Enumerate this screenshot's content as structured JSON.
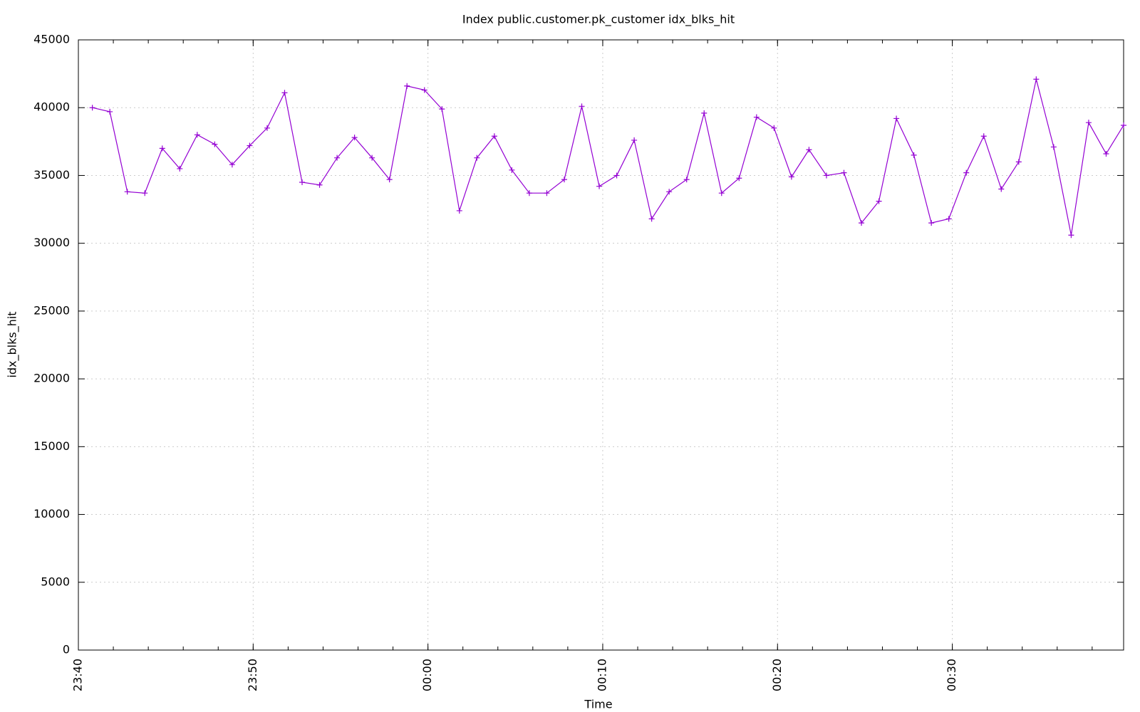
{
  "chart_data": {
    "type": "line",
    "title": "Index public.customer.pk_customer idx_blks_hit",
    "x_label": "Time",
    "y_label": "idx_blks_hit",
    "color": "#9400d3",
    "grid": true,
    "x": [
      0.8,
      1.8,
      2.8,
      3.8,
      4.8,
      5.8,
      6.8,
      7.8,
      8.8,
      9.8,
      10.8,
      11.8,
      12.8,
      13.8,
      14.8,
      15.8,
      16.8,
      17.8,
      18.8,
      19.8,
      20.8,
      21.8,
      22.8,
      23.8,
      24.8,
      25.8,
      26.8,
      27.8,
      28.8,
      29.8,
      30.8,
      31.8,
      32.8,
      33.8,
      34.8,
      35.8,
      36.8,
      37.8,
      38.8,
      39.8,
      40.8,
      41.8,
      42.8,
      43.8,
      44.8,
      45.8,
      46.8,
      47.8,
      48.8,
      49.8,
      50.8,
      51.8,
      52.8,
      53.8,
      54.8,
      55.8,
      56.8,
      57.8,
      58.8,
      59.8
    ],
    "values": [
      40000,
      39700,
      33800,
      33700,
      37000,
      35500,
      38000,
      37300,
      35800,
      37200,
      38500,
      41100,
      34500,
      34300,
      36300,
      37800,
      36300,
      34700,
      41600,
      41300,
      39900,
      32400,
      36300,
      37900,
      35400,
      33700,
      33700,
      34700,
      40100,
      34200,
      35000,
      37600,
      31800,
      33800,
      34700,
      39600,
      33700,
      34800,
      39300,
      38500,
      34900,
      36900,
      35000,
      35200,
      31500,
      33100,
      39200,
      36500,
      31500,
      31800,
      35200,
      37900,
      34000,
      36000,
      42100,
      37100,
      30600,
      38900,
      36600,
      38700
    ],
    "xlim": [
      0,
      59.8
    ],
    "xticks": [
      {
        "value": 0,
        "label": "23:40"
      },
      {
        "value": 10,
        "label": "23:50"
      },
      {
        "value": 20,
        "label": "00:00"
      },
      {
        "value": 30,
        "label": "00:10"
      },
      {
        "value": 40,
        "label": "00:20"
      },
      {
        "value": 50,
        "label": "00:30"
      }
    ],
    "ylim": [
      0,
      45000
    ],
    "yticks": [
      0,
      5000,
      10000,
      15000,
      20000,
      25000,
      30000,
      35000,
      40000,
      45000
    ]
  }
}
